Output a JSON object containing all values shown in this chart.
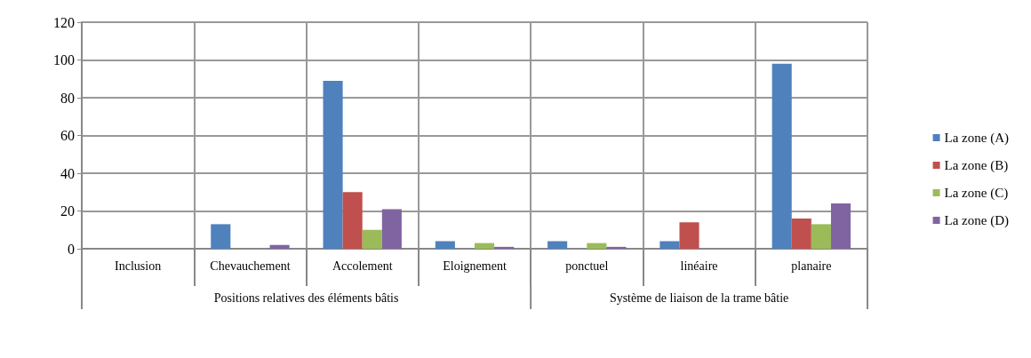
{
  "chart_data": {
    "type": "bar",
    "categories": [
      "Inclusion",
      "Chevauchement",
      "Accolement",
      "Eloignement",
      "ponctuel",
      "linéaire",
      "planaire"
    ],
    "series": [
      {
        "name": "La zone (A)",
        "color": "#4f81bd",
        "values": [
          0,
          13,
          89,
          4,
          4,
          4,
          98
        ]
      },
      {
        "name": "La zone (B)",
        "color": "#c0504d",
        "values": [
          0,
          0,
          30,
          0,
          0,
          14,
          16
        ]
      },
      {
        "name": "La zone (C)",
        "color": "#9bbb59",
        "values": [
          0,
          0,
          10,
          3,
          3,
          0,
          13
        ]
      },
      {
        "name": "La zone (D)",
        "color": "#8064a2",
        "values": [
          0,
          2,
          21,
          1,
          1,
          0,
          24
        ]
      }
    ],
    "ylim": [
      0,
      120
    ],
    "yticks": [
      0,
      20,
      40,
      60,
      80,
      100,
      120
    ],
    "grid": true,
    "legend": "right",
    "annotations": [
      "Positions relatives des éléments bâtis",
      "Système de liaison de la trame bâtie"
    ]
  }
}
